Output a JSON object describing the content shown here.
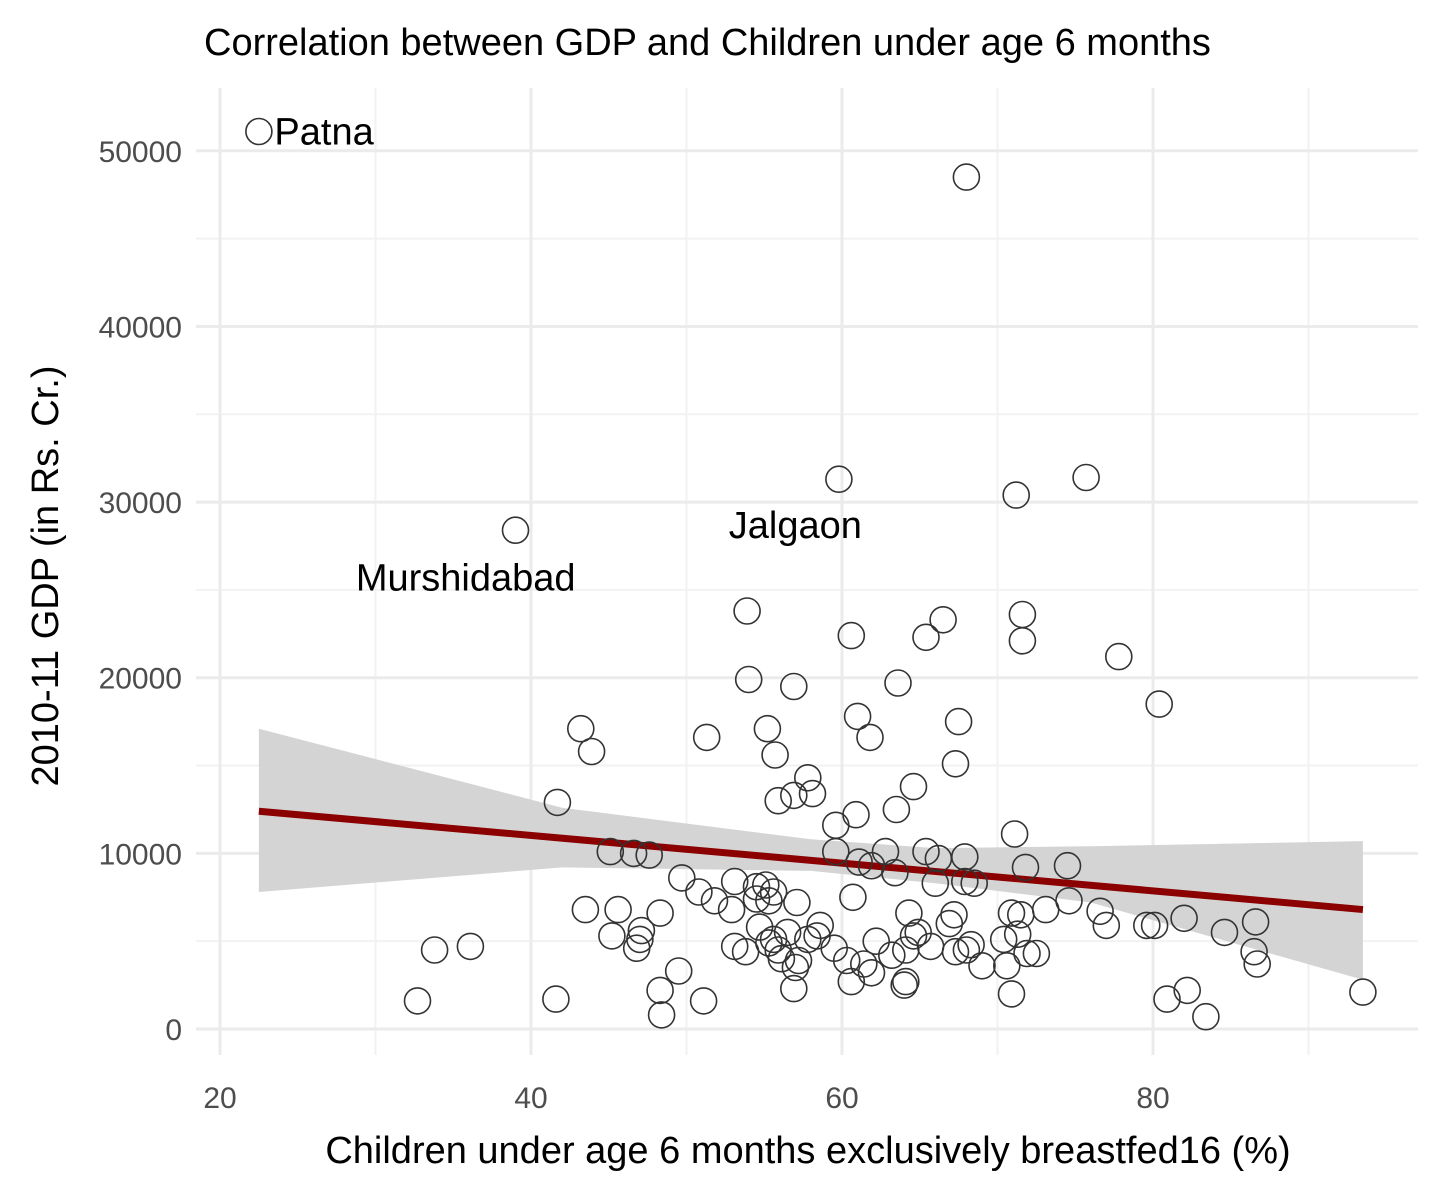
{
  "chart_data": {
    "type": "scatter",
    "title": "Correlation between GDP and Children under age 6 months",
    "xlabel": "Children under age 6 months exclusively breastfed16 (%)",
    "ylabel": "2010-11 GDP (in Rs. Cr.)",
    "xlim": [
      18,
      95
    ],
    "ylim": [
      -1500,
      55000
    ],
    "x_ticks": [
      20,
      40,
      60,
      80
    ],
    "x_tick_labels": [
      "20",
      "40",
      "60",
      "80"
    ],
    "x_minor_ticks": [
      30,
      50,
      70,
      90
    ],
    "y_ticks": [
      0,
      10000,
      20000,
      30000,
      40000,
      50000
    ],
    "y_tick_labels": [
      "0",
      "10000",
      "20000",
      "30000",
      "40000",
      "50000"
    ],
    "y_minor_ticks": [
      5000,
      15000,
      25000,
      35000,
      45000
    ],
    "grid": true,
    "point_style": "open-circle",
    "points": [
      [
        22.5,
        51100
      ],
      [
        68.0,
        48500
      ],
      [
        59.8,
        31300
      ],
      [
        75.7,
        31400
      ],
      [
        71.2,
        30400
      ],
      [
        39.0,
        28400
      ],
      [
        53.9,
        23800
      ],
      [
        66.5,
        23300
      ],
      [
        71.6,
        23600
      ],
      [
        60.6,
        22400
      ],
      [
        65.4,
        22300
      ],
      [
        71.6,
        22100
      ],
      [
        77.8,
        21200
      ],
      [
        54.0,
        19900
      ],
      [
        56.9,
        19500
      ],
      [
        63.6,
        19700
      ],
      [
        80.4,
        18500
      ],
      [
        55.2,
        17100
      ],
      [
        61.0,
        17800
      ],
      [
        67.5,
        17500
      ],
      [
        43.2,
        17100
      ],
      [
        43.9,
        15800
      ],
      [
        51.3,
        16600
      ],
      [
        61.8,
        16600
      ],
      [
        55.7,
        15600
      ],
      [
        67.3,
        15100
      ],
      [
        57.8,
        14300
      ],
      [
        58.1,
        13400
      ],
      [
        56.9,
        13300
      ],
      [
        55.9,
        13000
      ],
      [
        64.6,
        13800
      ],
      [
        63.5,
        12500
      ],
      [
        41.7,
        12900
      ],
      [
        60.9,
        12200
      ],
      [
        59.6,
        11600
      ],
      [
        71.1,
        11100
      ],
      [
        45.1,
        10100
      ],
      [
        46.6,
        10000
      ],
      [
        47.6,
        9900
      ],
      [
        59.6,
        10100
      ],
      [
        62.8,
        10100
      ],
      [
        65.4,
        10100
      ],
      [
        61.1,
        9500
      ],
      [
        61.9,
        9300
      ],
      [
        66.2,
        9700
      ],
      [
        67.9,
        9800
      ],
      [
        71.8,
        9200
      ],
      [
        74.5,
        9300
      ],
      [
        49.7,
        8600
      ],
      [
        63.4,
        8900
      ],
      [
        66.0,
        8300
      ],
      [
        67.9,
        8400
      ],
      [
        68.5,
        8300
      ],
      [
        53.1,
        8400
      ],
      [
        54.5,
        8100
      ],
      [
        55.1,
        8200
      ],
      [
        55.6,
        7800
      ],
      [
        50.8,
        7800
      ],
      [
        51.8,
        7300
      ],
      [
        52.9,
        6800
      ],
      [
        54.5,
        7400
      ],
      [
        55.3,
        7300
      ],
      [
        57.1,
        7200
      ],
      [
        60.7,
        7500
      ],
      [
        73.1,
        6800
      ],
      [
        74.6,
        7300
      ],
      [
        76.6,
        6700
      ],
      [
        43.5,
        6800
      ],
      [
        45.6,
        6800
      ],
      [
        48.3,
        6600
      ],
      [
        64.3,
        6600
      ],
      [
        67.2,
        6500
      ],
      [
        70.9,
        6600
      ],
      [
        71.5,
        6500
      ],
      [
        58.6,
        5900
      ],
      [
        58.4,
        5300
      ],
      [
        57.8,
        5100
      ],
      [
        55.6,
        5100
      ],
      [
        54.7,
        5800
      ],
      [
        56.5,
        5500
      ],
      [
        45.2,
        5300
      ],
      [
        47.1,
        5600
      ],
      [
        47.0,
        5100
      ],
      [
        46.8,
        4600
      ],
      [
        53.1,
        4700
      ],
      [
        53.8,
        4400
      ],
      [
        55.3,
        4900
      ],
      [
        55.9,
        4500
      ],
      [
        56.1,
        4000
      ],
      [
        57.2,
        3900
      ],
      [
        57.0,
        3500
      ],
      [
        59.5,
        4600
      ],
      [
        60.3,
        3900
      ],
      [
        61.4,
        3700
      ],
      [
        62.2,
        5000
      ],
      [
        63.2,
        4200
      ],
      [
        64.1,
        4500
      ],
      [
        64.6,
        5300
      ],
      [
        64.9,
        5500
      ],
      [
        65.7,
        4700
      ],
      [
        66.9,
        6000
      ],
      [
        67.3,
        4400
      ],
      [
        68.0,
        4500
      ],
      [
        68.3,
        4800
      ],
      [
        69.0,
        3600
      ],
      [
        70.6,
        3600
      ],
      [
        70.4,
        5100
      ],
      [
        71.3,
        5400
      ],
      [
        71.9,
        4300
      ],
      [
        72.5,
        4300
      ],
      [
        77.0,
        5900
      ],
      [
        79.6,
        5900
      ],
      [
        80.1,
        5900
      ],
      [
        82.0,
        6300
      ],
      [
        84.6,
        5500
      ],
      [
        86.6,
        6100
      ],
      [
        86.5,
        4400
      ],
      [
        86.7,
        3700
      ],
      [
        33.8,
        4500
      ],
      [
        36.1,
        4700
      ],
      [
        32.7,
        1600
      ],
      [
        41.6,
        1700
      ],
      [
        48.3,
        2200
      ],
      [
        48.4,
        800
      ],
      [
        49.5,
        3300
      ],
      [
        51.1,
        1600
      ],
      [
        56.9,
        2300
      ],
      [
        60.6,
        2700
      ],
      [
        61.9,
        3200
      ],
      [
        64.0,
        2500
      ],
      [
        64.1,
        2700
      ],
      [
        70.9,
        2000
      ],
      [
        80.9,
        1700
      ],
      [
        82.2,
        2200
      ],
      [
        83.4,
        700
      ],
      [
        93.5,
        2100
      ]
    ],
    "trend_line": {
      "type": "linear-fit",
      "color": "#8b0000",
      "x": [
        22.5,
        93.5
      ],
      "y": [
        12400,
        6800
      ]
    },
    "confidence_band": {
      "color": "#d4d4d4",
      "x": [
        22.5,
        42.0,
        58.0,
        66.0,
        76.0,
        93.5
      ],
      "lower": [
        7800,
        9200,
        9000,
        8300,
        7200,
        2800
      ],
      "upper": [
        17100,
        12600,
        10800,
        10300,
        10400,
        10700
      ]
    },
    "annotations": [
      {
        "text": "Patna",
        "x": 23.5,
        "y": 51100,
        "anchor": "start"
      },
      {
        "text": "Jalgaon",
        "x": 57.0,
        "y": 28700,
        "anchor": "middle"
      },
      {
        "text": "Murshidabad",
        "x": 35.8,
        "y": 25700,
        "anchor": "middle"
      }
    ]
  }
}
